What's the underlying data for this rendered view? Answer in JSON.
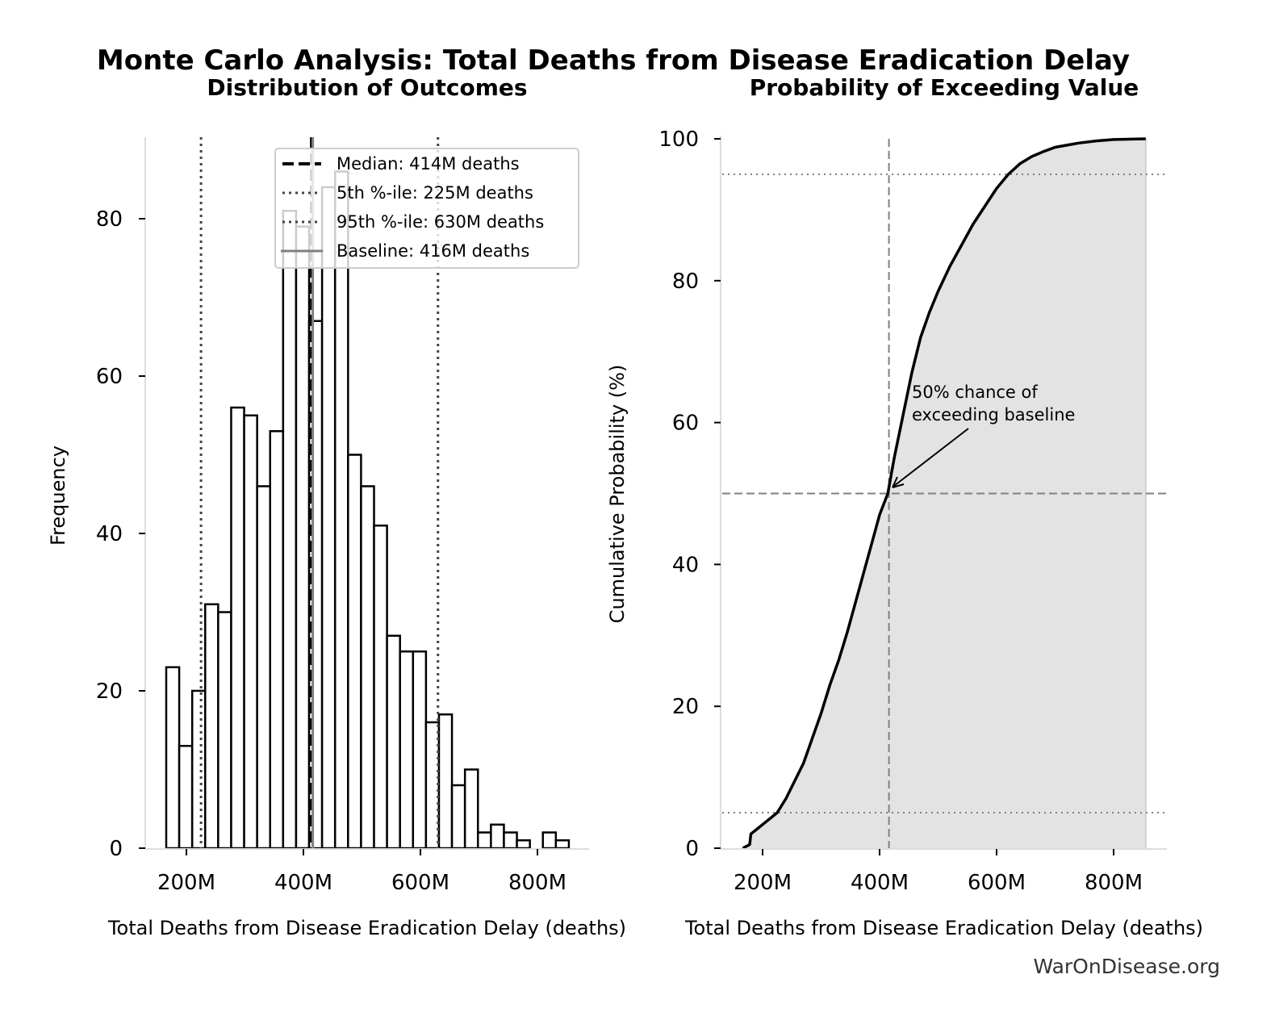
{
  "figure": {
    "suptitle": "Monte Carlo Analysis: Total Deaths from Disease Eradication Delay",
    "watermark": "WarOnDisease.org"
  },
  "chart_data": [
    {
      "type": "bar",
      "subtype": "histogram",
      "title": "Distribution of Outcomes",
      "xlabel": "Total Deaths from Disease Eradication Delay (deaths)",
      "ylabel": "Frequency",
      "xlim": [
        130,
        885
      ],
      "ylim": [
        0,
        90
      ],
      "xticks": [
        200,
        400,
        600,
        800
      ],
      "xtick_labels": [
        "200M",
        "400M",
        "600M",
        "800M"
      ],
      "yticks": [
        0,
        20,
        40,
        60,
        80
      ],
      "ytick_labels": [
        "0",
        "20",
        "40",
        "60",
        "80"
      ],
      "x_units": "millions of deaths",
      "bin_start": 165.5,
      "bin_width": 22.2,
      "values": [
        23,
        13,
        20,
        31,
        30,
        56,
        55,
        46,
        53,
        81,
        79,
        67,
        84,
        86,
        50,
        46,
        41,
        27,
        25,
        25,
        16,
        17,
        8,
        10,
        2,
        3,
        2,
        1,
        0,
        2,
        1
      ],
      "bar_fill": "#ffffff",
      "bar_edge": "#000000",
      "reference_lines": [
        {
          "name": "median",
          "x": 414,
          "style": "dashed",
          "color": "#000000"
        },
        {
          "name": "p5",
          "x": 225,
          "style": "dotted",
          "color": "#444444"
        },
        {
          "name": "p95",
          "x": 630,
          "style": "dotted",
          "color": "#444444"
        },
        {
          "name": "baseline",
          "x": 416,
          "style": "solid",
          "color": "#808080"
        }
      ],
      "legend": {
        "placement": "upper-right",
        "entries": [
          {
            "label": "Median: 414M deaths",
            "style": "dashed",
            "color": "#000000"
          },
          {
            "label": "5th %-ile: 225M deaths",
            "style": "dotted",
            "color": "#444444"
          },
          {
            "label": "95th %-ile: 630M deaths",
            "style": "dotted",
            "color": "#444444"
          },
          {
            "label": "Baseline: 416M deaths",
            "style": "solid",
            "color": "#808080"
          }
        ]
      },
      "grid": false
    },
    {
      "type": "area",
      "subtype": "cdf",
      "title": "Probability of Exceeding Value",
      "xlabel": "Total Deaths from Disease Eradication Delay (deaths)",
      "ylabel": "Cumulative Probability (%)",
      "xlim": [
        130,
        885
      ],
      "ylim": [
        0,
        100
      ],
      "xticks": [
        200,
        400,
        600,
        800
      ],
      "xtick_labels": [
        "200M",
        "400M",
        "600M",
        "800M"
      ],
      "yticks": [
        0,
        20,
        40,
        60,
        80,
        100
      ],
      "ytick_labels": [
        "0",
        "20",
        "40",
        "60",
        "80",
        "100"
      ],
      "x_units": "millions of deaths",
      "x": [
        166,
        178,
        180,
        195,
        210,
        225,
        240,
        255,
        270,
        285,
        300,
        315,
        330,
        345,
        360,
        375,
        390,
        400,
        414,
        425,
        440,
        455,
        470,
        485,
        500,
        520,
        540,
        560,
        580,
        600,
        620,
        640,
        660,
        680,
        700,
        720,
        740,
        770,
        800,
        855
      ],
      "y": [
        0,
        0.5,
        2,
        3,
        4,
        5,
        7,
        9.5,
        12,
        15.5,
        19,
        23,
        26.5,
        30.5,
        35,
        39.5,
        44,
        47,
        50,
        55,
        61,
        67,
        72,
        75.5,
        78.5,
        82,
        85,
        88,
        90.5,
        93,
        95,
        96.5,
        97.5,
        98.2,
        98.8,
        99.1,
        99.4,
        99.7,
        99.9,
        100
      ],
      "fill_color": "#e3e3e3",
      "line_color": "#000000",
      "reference_lines": [
        {
          "name": "baseline-vertical",
          "x": 416,
          "style": "dashed",
          "color": "#808080"
        },
        {
          "name": "p50-horizontal",
          "y": 50,
          "style": "dashed",
          "color": "#808080"
        },
        {
          "name": "p5-horizontal",
          "y": 5,
          "style": "dotted",
          "color": "#808080"
        },
        {
          "name": "p95-horizontal",
          "y": 95,
          "style": "dotted",
          "color": "#808080"
        }
      ],
      "annotation": {
        "lines": [
          "50% chance of",
          "exceeding baseline"
        ],
        "points_to": {
          "x": 416,
          "y": 50
        }
      },
      "grid": false
    }
  ]
}
